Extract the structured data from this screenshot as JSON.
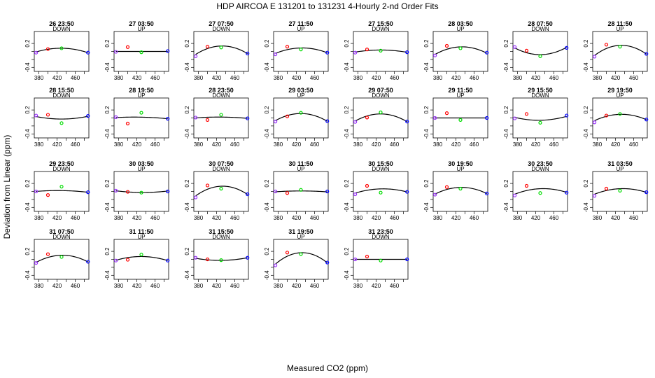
{
  "chart_data": {
    "type": "scatter",
    "title": "HDP   AIRCOA E   131201 to 131231   4-Hourly 2-nd Order Fits",
    "xlabel": "Measured CO2 (ppm)",
    "ylabel": "Deviation from Linear (ppm)",
    "xlim": [
      370,
      490
    ],
    "ylim": [
      -0.5,
      0.5
    ],
    "xticks": [
      380,
      420,
      460
    ],
    "xticks_minor": [
      400,
      440,
      480
    ],
    "yticks": [
      -0.4,
      -0.2,
      0,
      0.2
    ],
    "ytick_labels": [
      "-0.4",
      "",
      "0.2"
    ],
    "ytick_labels_full": [
      "-0.4",
      "0",
      "0.2"
    ],
    "standards_x": [
      374,
      400,
      430,
      488
    ],
    "standard_colors": [
      "#9b30ff",
      "#ff0000",
      "#00dd00",
      "#0000ff"
    ],
    "panels": [
      {
        "title": "26 23:50",
        "dir": "DOWN",
        "y": [
          -0.03,
          0.06,
          0.08,
          -0.03
        ],
        "curve": [
          -0.02,
          0.07,
          0.07,
          -0.03
        ]
      },
      {
        "title": "27 03:50",
        "dir": "UP",
        "y": [
          -0.01,
          0.11,
          -0.02,
          0.01
        ],
        "curve": [
          0.0,
          0.0,
          0.0,
          0.0
        ]
      },
      {
        "title": "27 07:50",
        "dir": "DOWN",
        "y": [
          -0.12,
          0.12,
          0.1,
          -0.05
        ],
        "curve": [
          -0.09,
          0.11,
          0.11,
          -0.05
        ]
      },
      {
        "title": "27 11:50",
        "dir": "UP",
        "y": [
          -0.07,
          0.12,
          0.05,
          -0.03
        ],
        "curve": [
          -0.06,
          0.07,
          0.07,
          -0.03
        ]
      },
      {
        "title": "27 15:50",
        "dir": "DOWN",
        "y": [
          -0.03,
          0.05,
          0.02,
          -0.02
        ],
        "curve": [
          -0.02,
          0.03,
          0.03,
          -0.02
        ]
      },
      {
        "title": "28 03:50",
        "dir": "UP",
        "y": [
          -0.1,
          0.14,
          0.08,
          -0.03
        ],
        "curve": [
          -0.09,
          0.09,
          0.09,
          -0.04
        ]
      },
      {
        "title": "28 07:50",
        "dir": "DOWN",
        "y": [
          0.11,
          0.02,
          -0.12,
          0.09
        ],
        "curve": [
          0.1,
          -0.06,
          -0.06,
          0.1
        ]
      },
      {
        "title": "28 11:50",
        "dir": "UP",
        "y": [
          -0.13,
          0.17,
          0.12,
          -0.06
        ],
        "curve": [
          -0.12,
          0.12,
          0.12,
          -0.06
        ]
      },
      {
        "title": "28 15:50",
        "dir": "DOWN",
        "y": [
          0.06,
          0.08,
          -0.13,
          0.05
        ],
        "curve": [
          0.04,
          -0.02,
          -0.02,
          0.04
        ]
      },
      {
        "title": "28 19:50",
        "dir": "UP",
        "y": [
          0.02,
          -0.14,
          0.13,
          -0.02
        ],
        "curve": [
          0.01,
          0.02,
          0.02,
          -0.02
        ]
      },
      {
        "title": "28 23:50",
        "dir": "DOWN",
        "y": [
          0.01,
          -0.05,
          0.08,
          -0.01
        ],
        "curve": [
          0.0,
          0.02,
          0.02,
          -0.01
        ]
      },
      {
        "title": "29 03:50",
        "dir": "UP",
        "y": [
          -0.09,
          0.04,
          0.13,
          -0.08
        ],
        "curve": [
          -0.08,
          0.09,
          0.09,
          -0.08
        ]
      },
      {
        "title": "29 07:50",
        "dir": "DOWN",
        "y": [
          -0.1,
          0.01,
          0.14,
          -0.09
        ],
        "curve": [
          -0.09,
          0.08,
          0.08,
          -0.09
        ]
      },
      {
        "title": "29 11:50",
        "dir": "UP",
        "y": [
          0.0,
          0.12,
          -0.05,
          0.0
        ],
        "curve": [
          0.0,
          0.0,
          0.0,
          0.0
        ]
      },
      {
        "title": "29 15:50",
        "dir": "DOWN",
        "y": [
          -0.01,
          0.1,
          -0.12,
          0.06
        ],
        "curve": [
          0.02,
          -0.05,
          -0.05,
          0.04
        ]
      },
      {
        "title": "29 19:50",
        "dir": "UP",
        "y": [
          -0.11,
          0.06,
          0.1,
          -0.04
        ],
        "curve": [
          -0.08,
          0.07,
          0.07,
          -0.04
        ]
      },
      {
        "title": "29 23:50",
        "dir": "DOWN",
        "y": [
          0.0,
          -0.09,
          0.12,
          -0.02
        ],
        "curve": [
          0.0,
          0.02,
          0.02,
          -0.02
        ]
      },
      {
        "title": "30 03:50",
        "dir": "UP",
        "y": [
          0.02,
          -0.01,
          -0.03,
          0.0
        ],
        "curve": [
          0.02,
          -0.02,
          -0.02,
          0.01
        ]
      },
      {
        "title": "30 07:50",
        "dir": "DOWN",
        "y": [
          -0.15,
          0.15,
          0.07,
          -0.07
        ],
        "curve": [
          -0.13,
          0.1,
          0.1,
          -0.07
        ]
      },
      {
        "title": "30 11:50",
        "dir": "UP",
        "y": [
          0.0,
          -0.04,
          0.04,
          0.0
        ],
        "curve": [
          -0.01,
          0.01,
          0.01,
          -0.01
        ]
      },
      {
        "title": "30 15:50",
        "dir": "DOWN",
        "y": [
          -0.07,
          0.14,
          -0.03,
          -0.01
        ],
        "curve": [
          -0.05,
          0.05,
          0.05,
          -0.01
        ]
      },
      {
        "title": "30 19:50",
        "dir": "UP",
        "y": [
          -0.08,
          0.11,
          0.07,
          -0.05
        ],
        "curve": [
          -0.08,
          0.08,
          0.08,
          -0.05
        ]
      },
      {
        "title": "30 23:50",
        "dir": "DOWN",
        "y": [
          -0.1,
          0.14,
          -0.04,
          -0.03
        ],
        "curve": [
          -0.08,
          0.05,
          0.05,
          -0.02
        ]
      },
      {
        "title": "31 03:50",
        "dir": "UP",
        "y": [
          -0.11,
          0.07,
          0.02,
          -0.02
        ],
        "curve": [
          -0.08,
          0.05,
          0.05,
          -0.02
        ]
      },
      {
        "title": "31 07:50",
        "dir": "DOWN",
        "y": [
          -0.09,
          0.13,
          0.06,
          -0.06
        ],
        "curve": [
          -0.09,
          0.08,
          0.08,
          -0.06
        ]
      },
      {
        "title": "31 11:50",
        "dir": "UP",
        "y": [
          -0.03,
          -0.01,
          0.12,
          -0.03
        ],
        "curve": [
          -0.03,
          0.06,
          0.06,
          -0.03
        ]
      },
      {
        "title": "31 15:50",
        "dir": "DOWN",
        "y": [
          0.04,
          0.0,
          -0.02,
          0.04
        ],
        "curve": [
          0.03,
          -0.02,
          -0.02,
          0.04
        ]
      },
      {
        "title": "31 19:50",
        "dir": "UP",
        "y": [
          -0.15,
          0.17,
          0.13,
          -0.08
        ],
        "curve": [
          -0.14,
          0.13,
          0.13,
          -0.08
        ]
      },
      {
        "title": "31 23:50",
        "dir": "DOWN",
        "y": [
          0.0,
          0.07,
          -0.03,
          0.0
        ],
        "curve": [
          0.0,
          0.0,
          0.0,
          0.0
        ]
      }
    ]
  }
}
